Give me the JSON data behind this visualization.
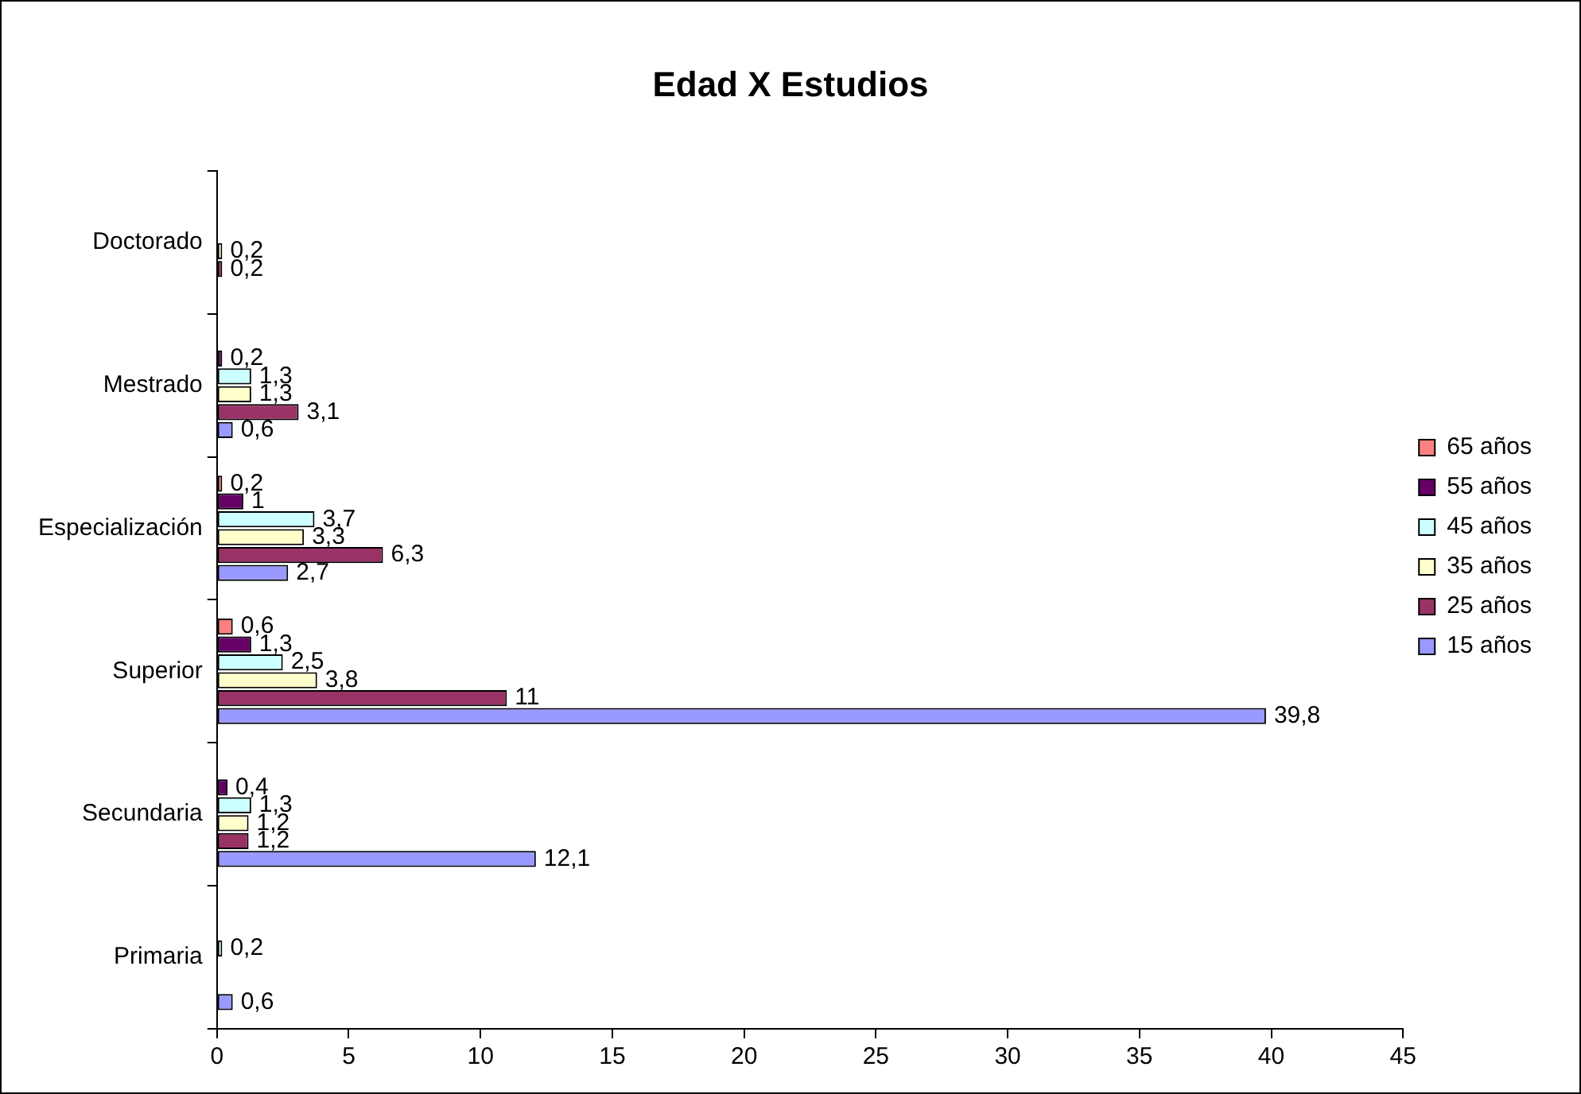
{
  "chart_data": {
    "type": "bar",
    "orientation": "horizontal",
    "title": "Edad X Estudios",
    "categories": [
      "Doctorado",
      "Mestrado",
      "Especialización",
      "Superior",
      "Secundaria",
      "Primaria"
    ],
    "series": [
      {
        "name": "65 años",
        "color": "#ff8080",
        "values": [
          null,
          null,
          0.2,
          0.6,
          null,
          null
        ],
        "value_labels": [
          null,
          null,
          "0,2",
          "0,6",
          null,
          null
        ]
      },
      {
        "name": "55 años",
        "color": "#660066",
        "values": [
          null,
          0.2,
          1,
          1.3,
          0.4,
          null
        ],
        "value_labels": [
          null,
          "0,2",
          "1",
          "1,3",
          "0,4",
          null
        ]
      },
      {
        "name": "45 años",
        "color": "#ccffff",
        "values": [
          null,
          1.3,
          3.7,
          2.5,
          1.3,
          0.2
        ],
        "value_labels": [
          null,
          "1,3",
          "3,7",
          "2,5",
          "1,3",
          "0,2"
        ]
      },
      {
        "name": "35 años",
        "color": "#ffffcc",
        "values": [
          0.2,
          1.3,
          3.3,
          3.8,
          1.2,
          null
        ],
        "value_labels": [
          "0,2",
          "1,3",
          "3,3",
          "3,8",
          "1,2",
          null
        ]
      },
      {
        "name": "25 años",
        "color": "#993366",
        "values": [
          0.2,
          3.1,
          6.3,
          11,
          1.2,
          null
        ],
        "value_labels": [
          "0,2",
          "3,1",
          "6,3",
          "11",
          "1,2",
          null
        ]
      },
      {
        "name": "15 años",
        "color": "#9999ff",
        "values": [
          null,
          0.6,
          2.7,
          39.8,
          12.1,
          0.6
        ],
        "value_labels": [
          null,
          "0,6",
          "2,7",
          "39,8",
          "12,1",
          "0,6"
        ]
      }
    ],
    "xlim": [
      0,
      45
    ],
    "xticks": [
      0,
      5,
      10,
      15,
      20,
      25,
      30,
      35,
      40,
      45
    ],
    "grid": false,
    "legend": "right"
  }
}
